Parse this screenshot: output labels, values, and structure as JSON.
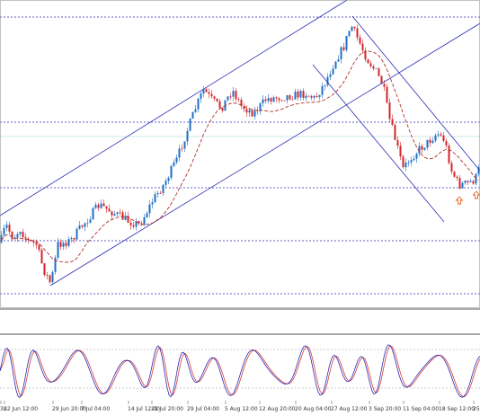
{
  "colors": {
    "background": "#ffffff",
    "channel": "#2b2bb4",
    "level": "#2b2bb4",
    "bull": "#1f6fc7",
    "bear": "#d1262b",
    "ma": "#b0302a",
    "arrow": "#e8621e",
    "stoch_main": "#2929b8",
    "stoch_signal": "#d43a3a",
    "separator": "#555555"
  },
  "icons": [
    "up-arrow-icon",
    "up-arrow-icon"
  ],
  "chart_data": {
    "type": "candlestick",
    "x_tick_labels": [
      "30",
      "22 Jun 12:00",
      "29 Jun 20:00",
      "7 Jul 04:00",
      "14 Jul 12:00",
      "21 Jul 20:00",
      "29 Jul 04:00",
      "5 Aug 12:00",
      "12 Aug 20:00",
      "20 Aug 04:00",
      "27 Aug 12:00",
      "3 Sep 20:00",
      "11 Sep 04:00",
      "18 Sep 12:00",
      "25"
    ],
    "grid": true,
    "indicator": "stochastic"
  }
}
